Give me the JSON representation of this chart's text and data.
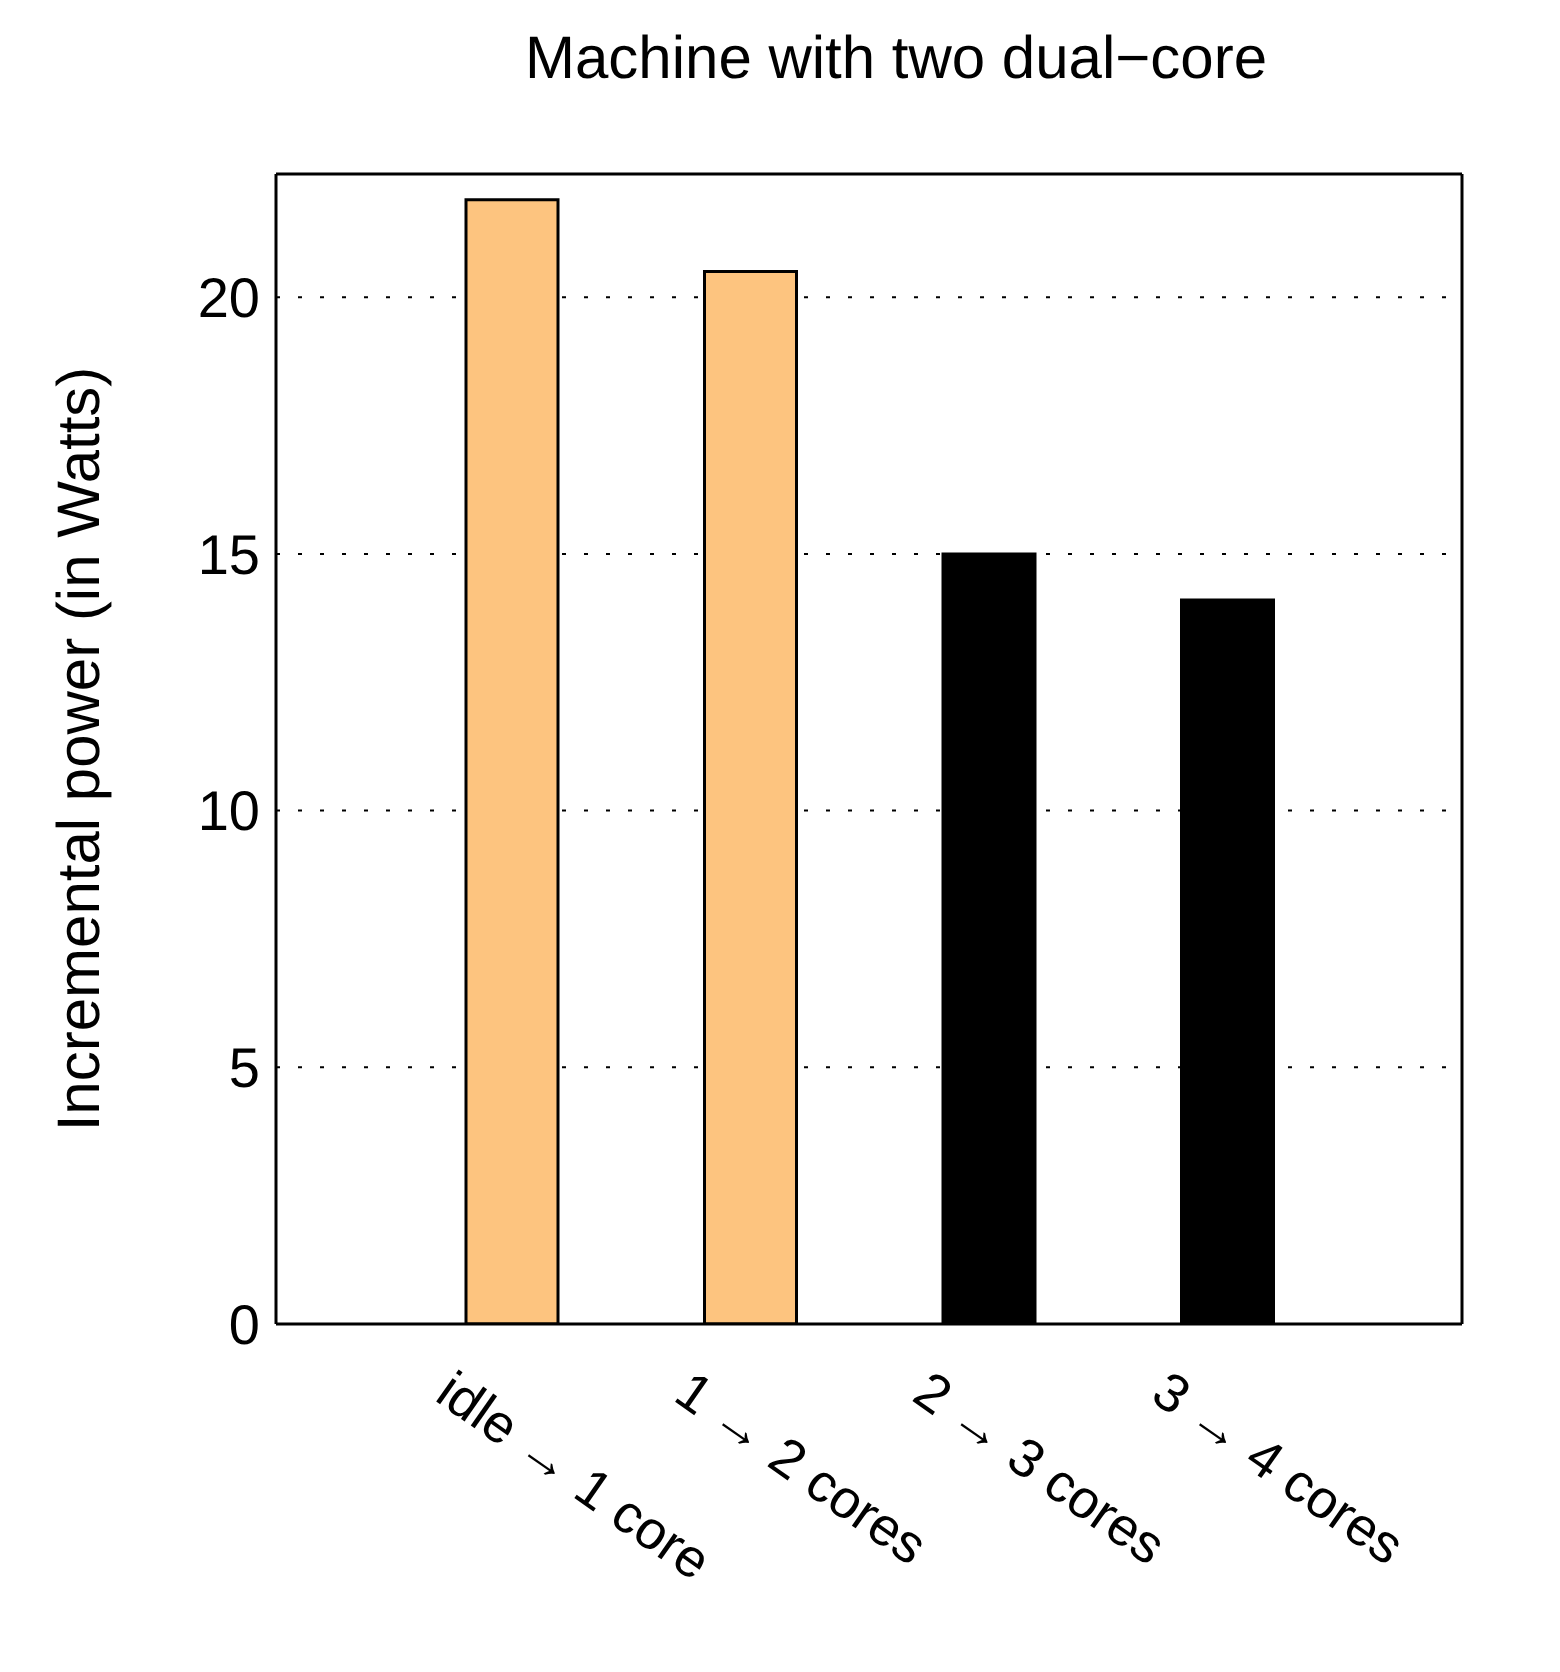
{
  "chart_data": {
    "type": "bar",
    "title": "Machine with two dual−core",
    "ylabel": "Incremental power (in Watts)",
    "categories": [
      "idle → 1 core",
      "1 → 2 cores",
      "2 → 3 cores",
      "3 → 4 cores"
    ],
    "values": [
      21.9,
      20.5,
      15.0,
      14.1
    ],
    "colors": [
      "#fdc47f",
      "#fdc47f",
      "#000000",
      "#000000"
    ],
    "ylim": [
      0,
      22.4
    ],
    "yticks": [
      0,
      5,
      10,
      15,
      20
    ],
    "grid": "y"
  }
}
